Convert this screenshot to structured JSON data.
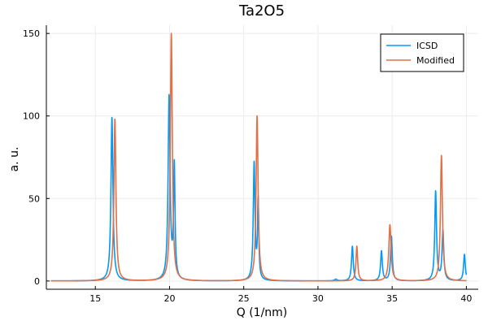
{
  "chart_data": {
    "type": "line",
    "title": "Ta2O5",
    "xlabel": "Q (1/nm)",
    "ylabel": "a. u.",
    "xlim": [
      11.7,
      40.8
    ],
    "ylim": [
      -5,
      155
    ],
    "xticks": [
      15,
      20,
      25,
      30,
      35,
      40
    ],
    "yticks": [
      0,
      50,
      100,
      150
    ],
    "grid": true,
    "legend_position": "top-right",
    "x_start": 12,
    "x_end": 40,
    "series": [
      {
        "name": "ICSD",
        "color": "#009af9",
        "peaks": [
          {
            "x": 16.12,
            "y": 99,
            "width": 0.08
          },
          {
            "x": 19.97,
            "y": 111,
            "width": 0.08
          },
          {
            "x": 20.32,
            "y": 68,
            "width": 0.06
          },
          {
            "x": 25.7,
            "y": 71,
            "width": 0.07
          },
          {
            "x": 25.97,
            "y": 47,
            "width": 0.05
          },
          {
            "x": 31.2,
            "y": 1,
            "width": 0.1
          },
          {
            "x": 32.32,
            "y": 21,
            "width": 0.07
          },
          {
            "x": 34.28,
            "y": 18,
            "width": 0.07
          },
          {
            "x": 34.95,
            "y": 27,
            "width": 0.07
          },
          {
            "x": 37.93,
            "y": 54,
            "width": 0.07
          },
          {
            "x": 38.42,
            "y": 30,
            "width": 0.07
          },
          {
            "x": 39.87,
            "y": 16,
            "width": 0.07
          }
        ]
      },
      {
        "name": "Modified",
        "color": "#e26f46",
        "peaks": [
          {
            "x": 16.32,
            "y": 98,
            "width": 0.08
          },
          {
            "x": 20.12,
            "y": 150,
            "width": 0.08
          },
          {
            "x": 25.9,
            "y": 100,
            "width": 0.08
          },
          {
            "x": 32.62,
            "y": 21,
            "width": 0.07
          },
          {
            "x": 34.85,
            "y": 34,
            "width": 0.09
          },
          {
            "x": 38.32,
            "y": 76,
            "width": 0.08
          }
        ]
      }
    ]
  }
}
